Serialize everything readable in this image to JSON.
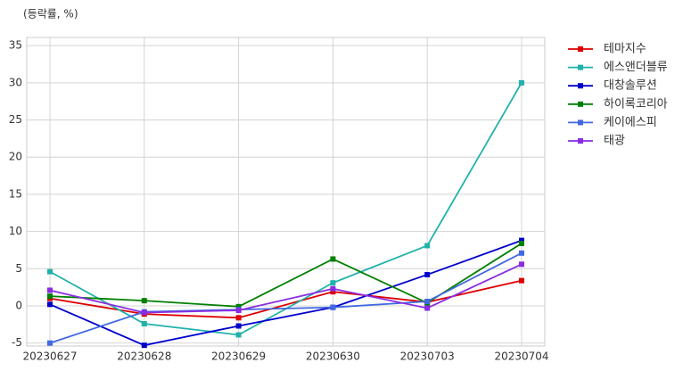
{
  "chart_data": {
    "type": "line",
    "ylabel": "(등락률, %)",
    "categories": [
      "20230627",
      "20230628",
      "20230629",
      "20230630",
      "20230703",
      "20230704"
    ],
    "series": [
      {
        "name": "테마지수",
        "color": "#dd0000",
        "values": [
          1.0,
          -1.1,
          -1.6,
          1.9,
          0.5,
          3.4
        ]
      },
      {
        "name": "에스앤더블류",
        "color": "#20b2aa",
        "values": [
          4.6,
          -2.4,
          -3.9,
          3.1,
          8.1,
          30.0
        ]
      },
      {
        "name": "대창솔루션",
        "color": "#0000cd",
        "values": [
          0.2,
          -5.3,
          -2.7,
          -0.2,
          4.2,
          8.8
        ]
      },
      {
        "name": "하이록코리아",
        "color": "#008000",
        "values": [
          1.3,
          0.7,
          -0.1,
          6.3,
          0.4,
          8.4
        ]
      },
      {
        "name": "케이에스피",
        "color": "#4169e1",
        "values": [
          -5.0,
          -0.8,
          -0.5,
          -0.2,
          0.6,
          7.1
        ]
      },
      {
        "name": "태광",
        "color": "#8a2be2",
        "values": [
          2.1,
          -0.9,
          -0.6,
          2.3,
          -0.3,
          5.6
        ]
      }
    ],
    "ylim": [
      -5.4,
      36.1
    ],
    "yticks": [
      -5,
      0,
      5,
      10,
      15,
      20,
      25,
      30,
      35
    ],
    "grid": true,
    "legend": "outside-right"
  }
}
